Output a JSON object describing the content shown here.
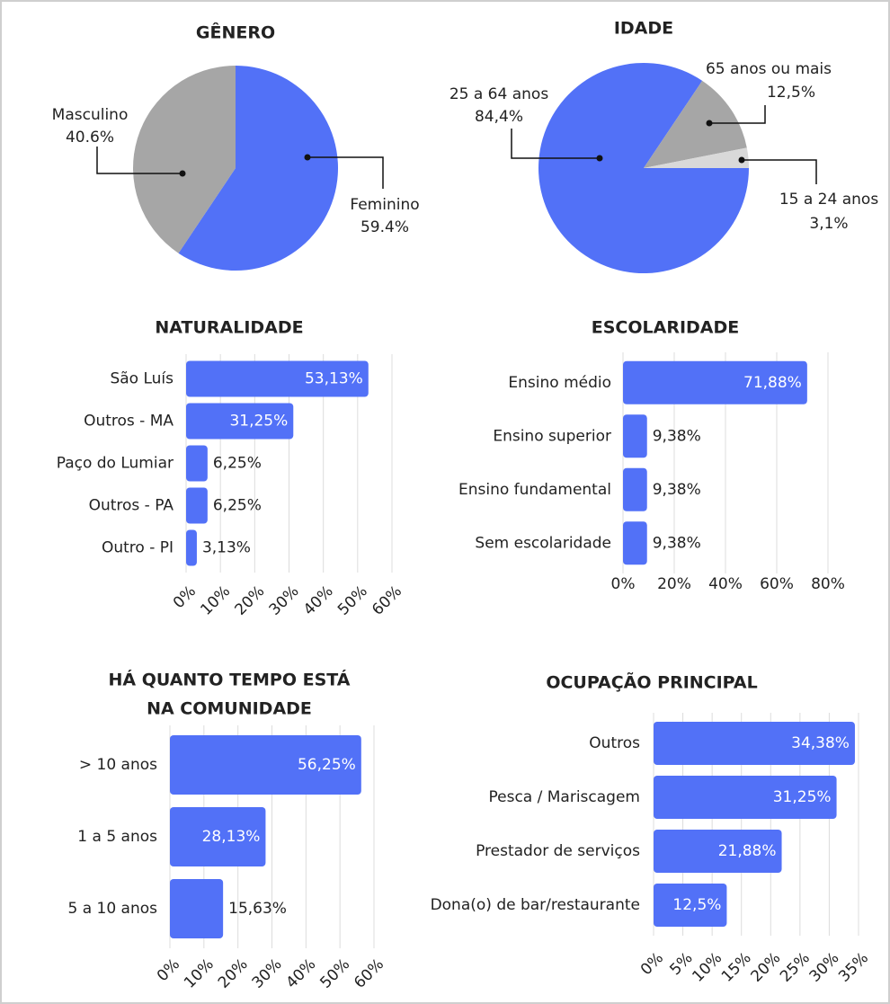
{
  "chart_data": [
    {
      "type": "pie",
      "title": "GÊNERO",
      "categories": [
        "Feminino",
        "Masculino"
      ],
      "values": [
        59.4,
        40.6
      ],
      "value_labels": [
        "59.4%",
        "40.6%"
      ],
      "colors": [
        "#5271f7",
        "#a6a6a6"
      ]
    },
    {
      "type": "pie",
      "title": "IDADE",
      "categories": [
        "25  a 64 anos",
        "65 anos ou mais",
        "15 a 24 anos"
      ],
      "values": [
        84.4,
        12.5,
        3.1
      ],
      "value_labels": [
        "84,4%",
        "12,5%",
        "3,1%"
      ],
      "colors": [
        "#5271f7",
        "#a6a6a6",
        "#d9d9d9"
      ]
    },
    {
      "type": "hbar",
      "title": "NATURALIDADE",
      "categories": [
        "São Luís",
        "Outros - MA",
        "Paço do Lumiar",
        "Outros - PA",
        "Outro - PI"
      ],
      "values": [
        53.13,
        31.25,
        6.25,
        6.25,
        3.13
      ],
      "value_labels": [
        "53,13%",
        "31,25%",
        "6,25%",
        "6,25%",
        "3,13%"
      ],
      "color": "#5271f7",
      "xlim": [
        0,
        60
      ],
      "xticks": [
        {
          "value": 0,
          "label": "0%"
        },
        {
          "value": 10,
          "label": "10%"
        },
        {
          "value": 20,
          "label": "20%"
        },
        {
          "value": 30,
          "label": "30%"
        },
        {
          "value": 40,
          "label": "40%"
        },
        {
          "value": 50,
          "label": "50%"
        },
        {
          "value": 60,
          "label": "60%"
        }
      ],
      "grid": true
    },
    {
      "type": "hbar",
      "title": "ESCOLARIDADE",
      "categories": [
        "Ensino médio",
        "Ensino superior",
        "Ensino fundamental",
        "Sem escolaridade"
      ],
      "values": [
        71.88,
        9.38,
        9.38,
        9.38
      ],
      "value_labels": [
        "71,88%",
        "9,38%",
        "9,38%",
        "9,38%"
      ],
      "color": "#5271f7",
      "xlim": [
        0,
        80
      ],
      "xticks": [
        {
          "value": 0,
          "label": "0%"
        },
        {
          "value": 20,
          "label": "20%"
        },
        {
          "value": 40,
          "label": "40%"
        },
        {
          "value": 60,
          "label": "60%"
        },
        {
          "value": 80,
          "label": "80%"
        }
      ],
      "grid": true
    },
    {
      "type": "hbar",
      "title": [
        "HÁ QUANTO TEMPO ESTÁ",
        "NA COMUNIDADE"
      ],
      "categories": [
        "> 10 anos",
        "1 a 5 anos",
        "5 a 10 anos"
      ],
      "values": [
        56.25,
        28.13,
        15.63
      ],
      "value_labels": [
        "56,25%",
        "28,13%",
        "15,63%"
      ],
      "color": "#5271f7",
      "xlim": [
        0,
        60
      ],
      "xticks": [
        {
          "value": 0,
          "label": "0%"
        },
        {
          "value": 10,
          "label": "10%"
        },
        {
          "value": 20,
          "label": "20%"
        },
        {
          "value": 30,
          "label": "30%"
        },
        {
          "value": 40,
          "label": "40%"
        },
        {
          "value": 50,
          "label": "50%"
        },
        {
          "value": 60,
          "label": "60%"
        }
      ],
      "grid": true
    },
    {
      "type": "hbar",
      "title": "OCUPAÇÃO PRINCIPAL",
      "categories": [
        "Outros",
        "Pesca / Mariscagem",
        "Prestador de serviços",
        "Dona(o) de bar/restaurante"
      ],
      "values": [
        34.38,
        31.25,
        21.88,
        12.5
      ],
      "value_labels": [
        "34,38%",
        "31,25%",
        "21,88%",
        "12,5%"
      ],
      "color": "#5271f7",
      "xlim": [
        0,
        35
      ],
      "xticks": [
        {
          "value": 0,
          "label": "0%"
        },
        {
          "value": 5,
          "label": "5%"
        },
        {
          "value": 10,
          "label": "10%"
        },
        {
          "value": 15,
          "label": "15%"
        },
        {
          "value": 20,
          "label": "20%"
        },
        {
          "value": 25,
          "label": "25%"
        },
        {
          "value": 30,
          "label": "30%"
        },
        {
          "value": 35,
          "label": "35%"
        }
      ],
      "grid": true
    }
  ]
}
